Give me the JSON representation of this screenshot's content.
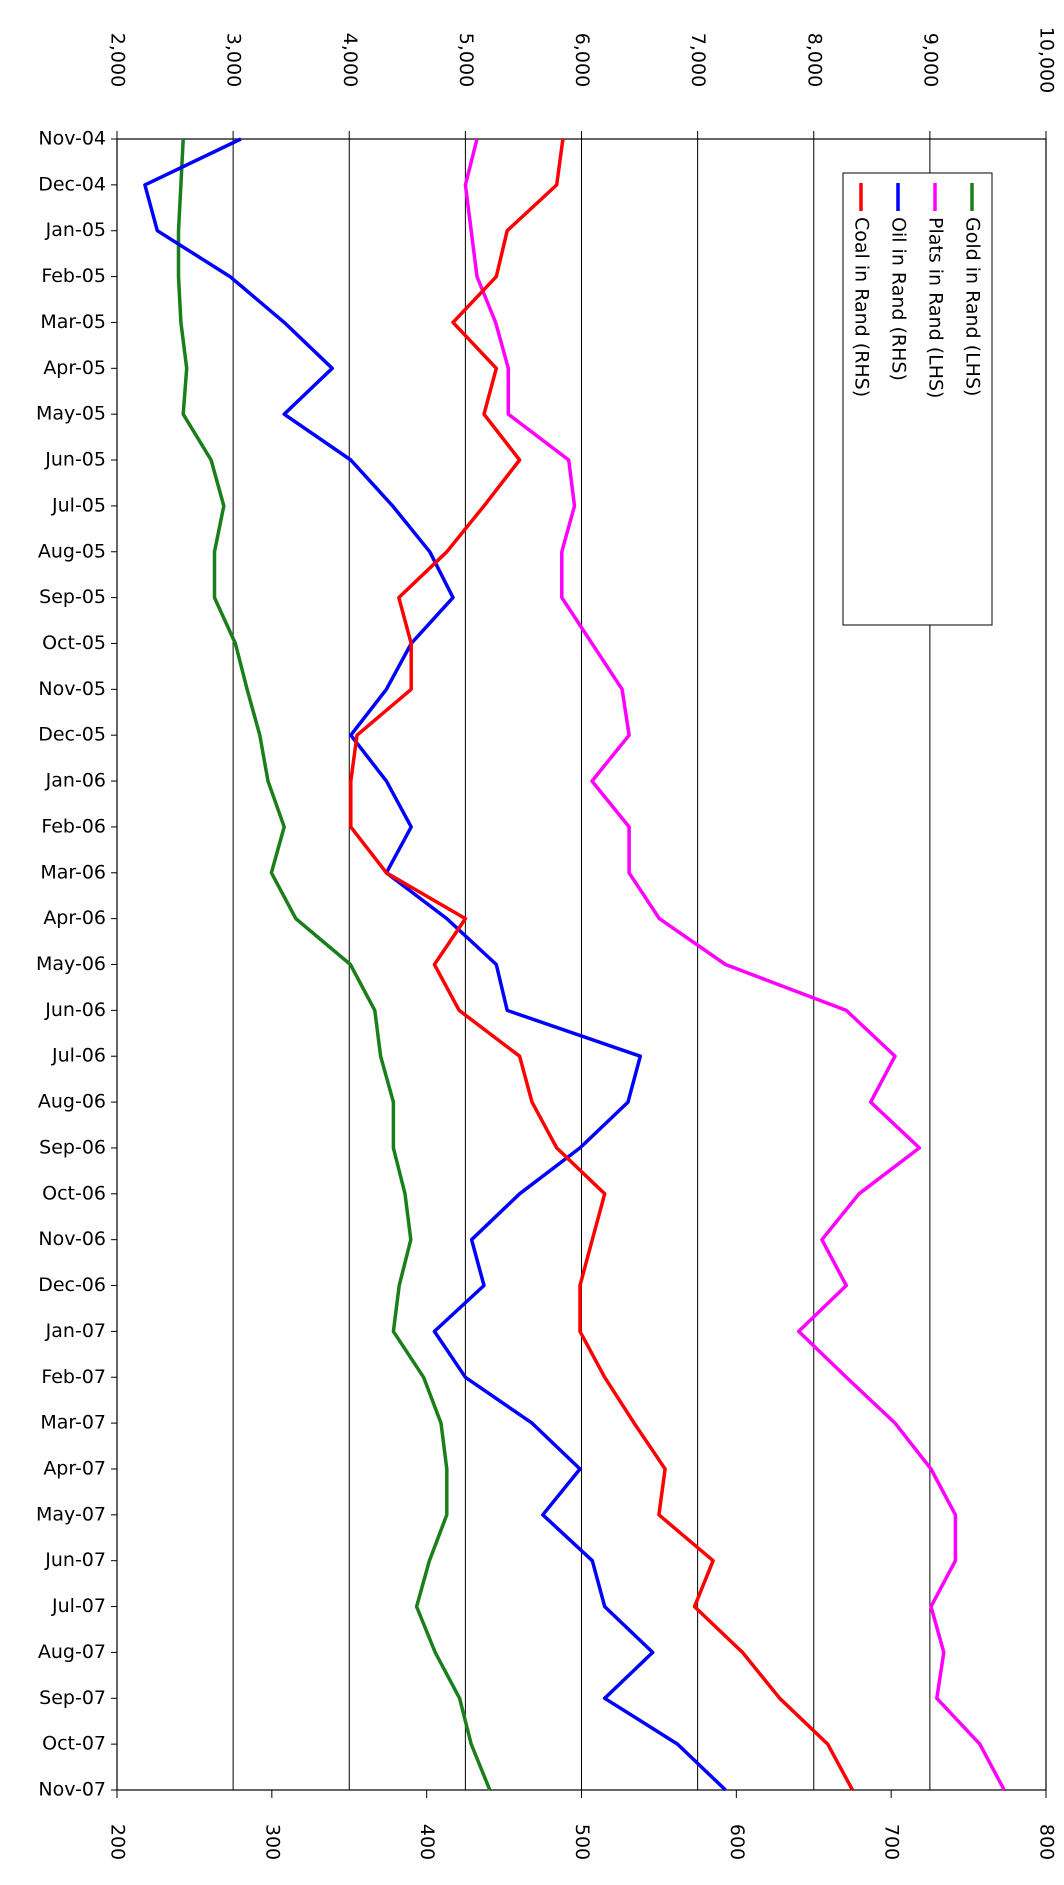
{
  "chart_data": {
    "type": "line",
    "categories": [
      "Nov-04",
      "Dec-04",
      "Jan-05",
      "Feb-05",
      "Mar-05",
      "Apr-05",
      "May-05",
      "Jun-05",
      "Jul-05",
      "Aug-05",
      "Sep-05",
      "Oct-05",
      "Nov-05",
      "Dec-05",
      "Jan-06",
      "Feb-06",
      "Mar-06",
      "Apr-06",
      "May-06",
      "Jun-06",
      "Jul-06",
      "Aug-06",
      "Sep-06",
      "Oct-06",
      "Nov-06",
      "Dec-06",
      "Jan-07",
      "Feb-07",
      "Mar-07",
      "Apr-07",
      "May-07",
      "Jun-07",
      "Jul-07",
      "Aug-07",
      "Sep-07",
      "Oct-07",
      "Nov-07"
    ],
    "series": [
      {
        "name": "Gold in Rand (LHS)",
        "color": "#1a7f1a",
        "values": [
          2570,
          2550,
          2530,
          2530,
          2550,
          2600,
          2570,
          2810,
          2920,
          2840,
          2840,
          3020,
          3120,
          3230,
          3300,
          3440,
          3330,
          3540,
          4010,
          4220,
          4270,
          4380,
          4380,
          4480,
          4530,
          4430,
          4380,
          4640,
          4790,
          4840,
          4840,
          4690,
          4580,
          4740,
          4950,
          5050,
          5210
        ]
      },
      {
        "name": "Plats in Rand (LHS)",
        "color": "#ff00ff",
        "values": [
          5100,
          5000,
          5050,
          5100,
          5260,
          5370,
          5370,
          5890,
          5940,
          5830,
          5830,
          6090,
          6350,
          6410,
          6090,
          6410,
          6410,
          6670,
          7240,
          8280,
          8700,
          8490,
          8910,
          8390,
          8070,
          8280,
          7870,
          8280,
          8700,
          9010,
          9220,
          9220,
          9010,
          9120,
          9060,
          9430,
          9640
        ]
      },
      {
        "name": "Oil in Rand (RHS)",
        "color": "#0000ff",
        "axis": "y2",
        "values": [
          280,
          218,
          226,
          273,
          308,
          339,
          308,
          351,
          378,
          402,
          417,
          390,
          374,
          351,
          374,
          390,
          374,
          413,
          445,
          452,
          538,
          530,
          499,
          460,
          429,
          437,
          405,
          425,
          468,
          499,
          475,
          507,
          515,
          546,
          515,
          562,
          593
        ]
      },
      {
        "name": "Coal in Rand (RHS)",
        "color": "#ff0000",
        "axis": "y2",
        "values": [
          488,
          484,
          452,
          445,
          417,
          445,
          437,
          460,
          437,
          413,
          382,
          390,
          390,
          355,
          351,
          351,
          374,
          425,
          405,
          421,
          460,
          468,
          484,
          515,
          507,
          499,
          499,
          515,
          534,
          554,
          550,
          585,
          573,
          604,
          628,
          659,
          675
        ]
      }
    ],
    "ylim": [
      2000,
      10000
    ],
    "yticks": [
      {
        "value": 2000,
        "label": "2,000"
      },
      {
        "value": 3000,
        "label": "3,000"
      },
      {
        "value": 4000,
        "label": "4,000"
      },
      {
        "value": 5000,
        "label": "5,000"
      },
      {
        "value": 6000,
        "label": "6,000"
      },
      {
        "value": 7000,
        "label": "7,000"
      },
      {
        "value": 8000,
        "label": "8,000"
      },
      {
        "value": 9000,
        "label": "9,000"
      },
      {
        "value": 10000,
        "label": "10,000"
      }
    ],
    "y2lim": [
      200,
      800
    ],
    "y2ticks": [
      200,
      300,
      400,
      500,
      600,
      700,
      800
    ],
    "grid": true,
    "legend": "upper-right"
  }
}
